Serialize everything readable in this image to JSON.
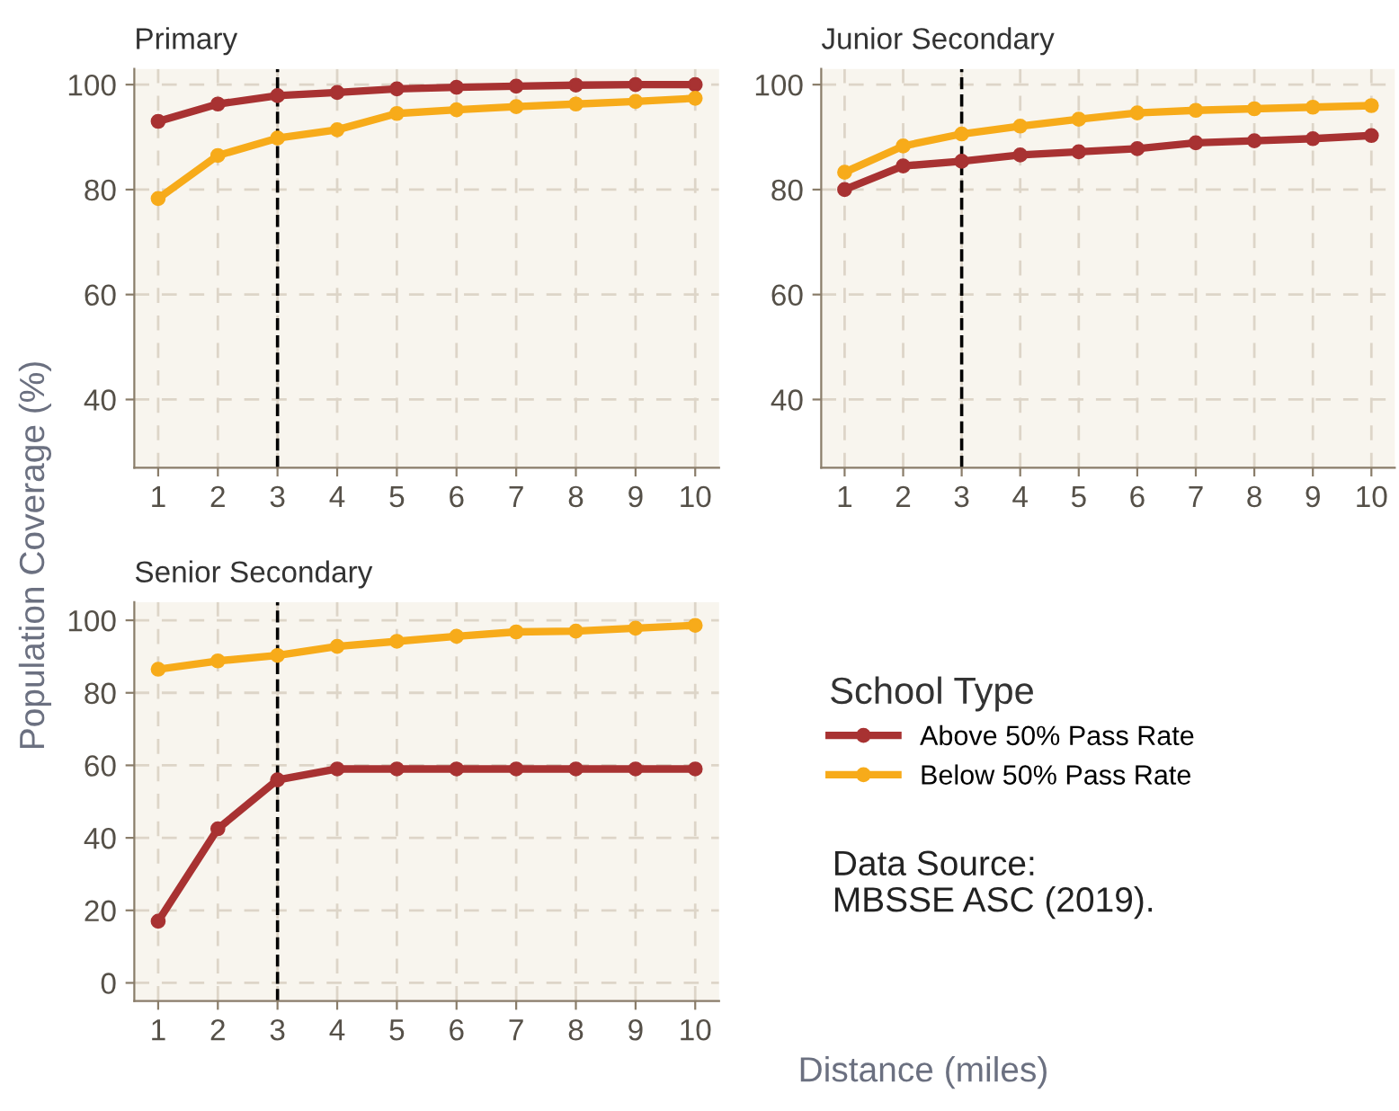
{
  "chart_data": [
    {
      "type": "line",
      "title": "Primary",
      "ylabel": "Population Coverage (%)",
      "x": [
        1,
        2,
        3,
        4,
        5,
        6,
        7,
        8,
        9,
        10
      ],
      "xlim": [
        0.6,
        10.4
      ],
      "xticks": [
        1,
        2,
        3,
        4,
        5,
        6,
        7,
        8,
        9,
        10
      ],
      "ylim": [
        27,
        103
      ],
      "yticks": [
        40,
        60,
        80,
        100
      ],
      "grid": true,
      "marker": "circle",
      "line_style": "solid",
      "legend": false,
      "ref_lines": [
        {
          "axis": "x",
          "value": 3,
          "color": "#000000",
          "line_style": "dashed"
        }
      ],
      "series": [
        {
          "color": "#a83232",
          "values": [
            93,
            96.3,
            97.9,
            98.5,
            99.2,
            99.5,
            99.7,
            99.9,
            100,
            100
          ]
        },
        {
          "color": "#f7ab1a",
          "values": [
            78.3,
            86.5,
            89.8,
            91.4,
            94.5,
            95.2,
            95.8,
            96.3,
            96.8,
            97.4
          ]
        }
      ]
    },
    {
      "type": "line",
      "title": "Junior Secondary",
      "x": [
        1,
        2,
        3,
        4,
        5,
        6,
        7,
        8,
        9,
        10
      ],
      "xlim": [
        0.6,
        10.4
      ],
      "xticks": [
        1,
        2,
        3,
        4,
        5,
        6,
        7,
        8,
        9,
        10
      ],
      "ylim": [
        27,
        103
      ],
      "yticks": [
        40,
        60,
        80,
        100
      ],
      "grid": true,
      "marker": "circle",
      "line_style": "solid",
      "legend": false,
      "ref_lines": [
        {
          "axis": "x",
          "value": 3,
          "color": "#000000",
          "line_style": "dashed"
        }
      ],
      "series": [
        {
          "color": "#a83232",
          "values": [
            80,
            84.5,
            85.4,
            86.6,
            87.2,
            87.8,
            88.9,
            89.3,
            89.7,
            90.3
          ]
        },
        {
          "color": "#f7ab1a",
          "values": [
            83.3,
            88.3,
            90.6,
            92.1,
            93.4,
            94.6,
            95.1,
            95.4,
            95.7,
            96.0
          ]
        }
      ]
    },
    {
      "type": "line",
      "title": "Senior Secondary",
      "xlabel": "Distance (miles)",
      "legend_title": "School Type",
      "legend": "right",
      "x": [
        1,
        2,
        3,
        4,
        5,
        6,
        7,
        8,
        9,
        10
      ],
      "xlim": [
        0.6,
        10.4
      ],
      "xticks": [
        1,
        2,
        3,
        4,
        5,
        6,
        7,
        8,
        9,
        10
      ],
      "ylim": [
        -5,
        105
      ],
      "yticks": [
        0,
        20,
        40,
        60,
        80,
        100
      ],
      "grid": true,
      "marker": "circle",
      "line_style": "solid",
      "ref_lines": [
        {
          "axis": "x",
          "value": 3,
          "color": "#000000",
          "line_style": "dashed"
        }
      ],
      "annotations": [
        "Data Source:\nMBSSE ASC (2019)."
      ],
      "series": [
        {
          "name": "Above 50% Pass Rate",
          "color": "#a83232",
          "values": [
            17,
            42.5,
            56,
            59,
            59,
            59,
            59,
            59,
            59,
            59
          ]
        },
        {
          "name": "Below 50% Pass Rate",
          "color": "#f7ab1a",
          "values": [
            86.5,
            88.8,
            90.3,
            92.8,
            94.2,
            95.6,
            96.8,
            97.0,
            97.8,
            98.6
          ]
        }
      ]
    }
  ]
}
